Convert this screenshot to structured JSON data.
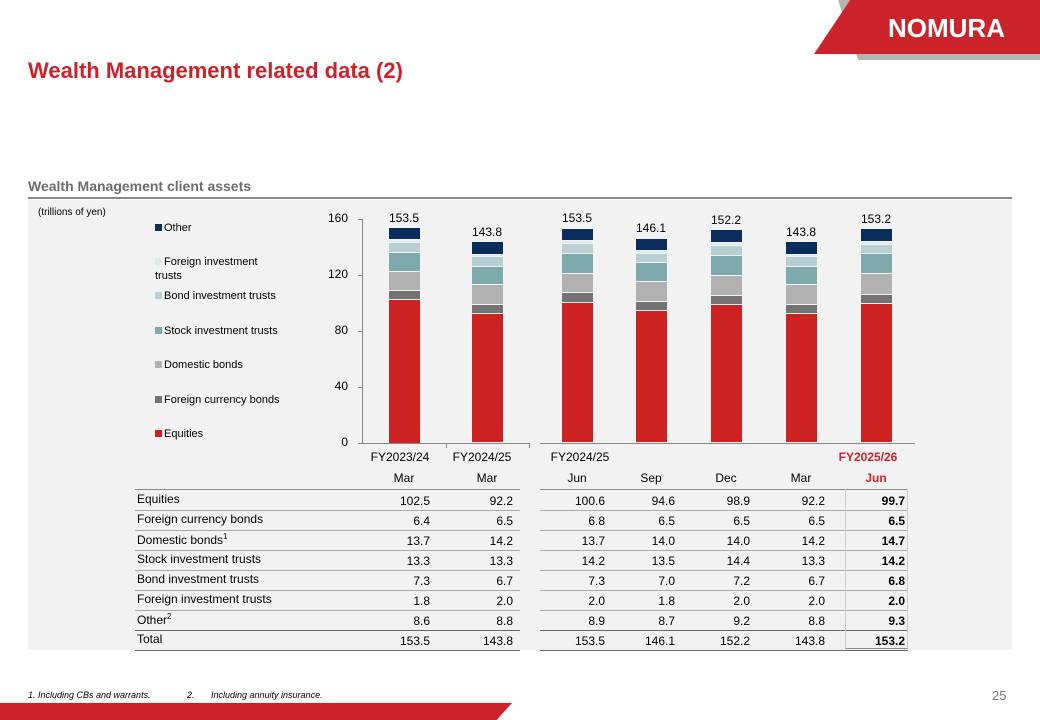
{
  "header": {
    "title": "Wealth Management related data (2)",
    "logo": "NOMURA"
  },
  "section": {
    "title": "Wealth Management client assets",
    "unit": "(trillions of yen)"
  },
  "footnotes": [
    "1. Including CBs and warrants.",
    "2.",
    "Including annuity insurance."
  ],
  "page_number": "25",
  "chart_data": {
    "type": "bar",
    "stacked": true,
    "ylim": [
      0,
      160
    ],
    "yticks": [
      "0",
      "40",
      "80",
      "120",
      "160"
    ],
    "groups": [
      {
        "label": "FY2023/24",
        "highlight": false
      },
      {
        "label": "FY2024/25",
        "highlight": false
      },
      {
        "label": "FY2024/25",
        "highlight": false
      },
      {
        "label": "FY2025/26",
        "highlight": true
      }
    ],
    "categories": [
      "Mar",
      "Mar",
      "Jun",
      "Sep",
      "Dec",
      "Mar",
      "Jun"
    ],
    "totals": [
      "153.5",
      "143.8",
      "153.5",
      "146.1",
      "152.2",
      "143.8",
      "153.2"
    ],
    "series": [
      {
        "name": "Equities",
        "table_label": "Equities",
        "color": "#cc2222",
        "values": [
          102.5,
          92.2,
          100.6,
          94.6,
          98.9,
          92.2,
          99.7
        ]
      },
      {
        "name": "Foreign currency bonds",
        "table_label": "Foreign currency bonds",
        "color": "#737373",
        "values": [
          6.4,
          6.5,
          6.8,
          6.5,
          6.5,
          6.5,
          6.5
        ]
      },
      {
        "name": "Domestic bonds",
        "table_label": "Domestic bonds",
        "sup": "1",
        "color": "#b1b1b1",
        "values": [
          13.7,
          14.2,
          13.7,
          14.0,
          14.0,
          14.2,
          14.7
        ]
      },
      {
        "name": "Stock investment trusts",
        "table_label": "Stock investment trusts",
        "color": "#7ea9ad",
        "values": [
          13.3,
          13.3,
          14.2,
          13.5,
          14.4,
          13.3,
          14.2
        ]
      },
      {
        "name": "Bond investment trusts",
        "table_label": "Bond investment trusts",
        "color": "#b9d0d3",
        "values": [
          7.3,
          6.7,
          7.3,
          7.0,
          7.2,
          6.7,
          6.8
        ]
      },
      {
        "name": "Foreign investment trusts",
        "table_label": "Foreign investment trusts",
        "color": "#dde9eb",
        "values": [
          1.8,
          2.0,
          2.0,
          1.8,
          2.0,
          2.0,
          2.0
        ]
      },
      {
        "name": "Other",
        "table_label": "Other",
        "sup": "2",
        "color": "#0b2d5b",
        "values": [
          8.6,
          8.8,
          8.9,
          8.7,
          9.2,
          8.8,
          9.3
        ]
      }
    ],
    "total_label": "Total",
    "legend": {
      "placement": "left",
      "order": [
        "Other",
        "Foreign investment trusts",
        "Bond investment trusts",
        "Stock investment trusts",
        "Domestic bonds",
        "Foreign currency bonds",
        "Equities"
      ]
    },
    "highlight_color": "#cc2229"
  }
}
